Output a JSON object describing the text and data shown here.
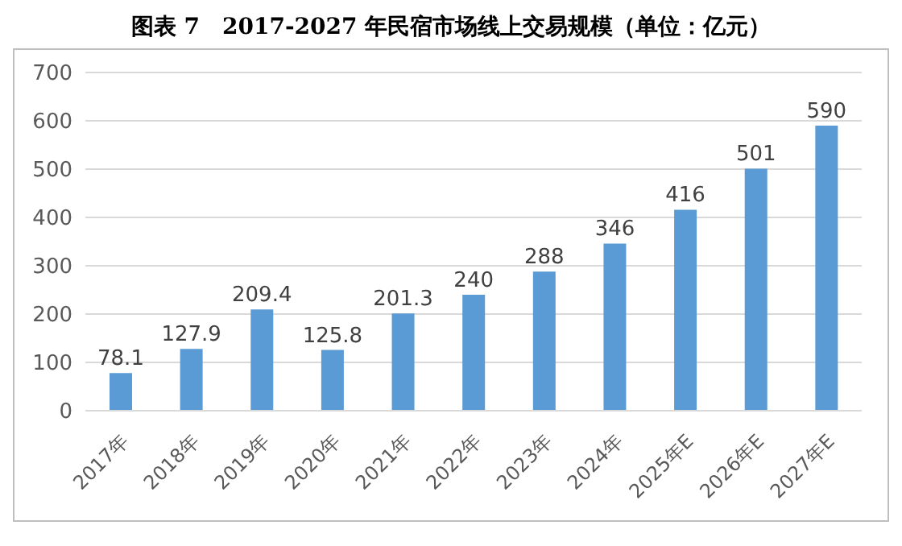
{
  "chart_data": {
    "type": "bar",
    "title": "图表 7　2017-2027 年民宿市场线上交易规模（单位：亿元）",
    "categories": [
      "2017年",
      "2018年",
      "2019年",
      "2020年",
      "2021年",
      "2022年",
      "2023年",
      "2024年",
      "2025年E",
      "2026年E",
      "2027年E"
    ],
    "values": [
      78.1,
      127.9,
      209.4,
      125.8,
      201.3,
      240,
      288,
      346,
      416,
      501,
      590
    ],
    "color": "#5b9bd5",
    "ylim": [
      0,
      700
    ],
    "yticks": [
      0,
      100,
      200,
      300,
      400,
      500,
      600,
      700
    ],
    "grid": "y",
    "data_labels": true,
    "legend": false
  }
}
